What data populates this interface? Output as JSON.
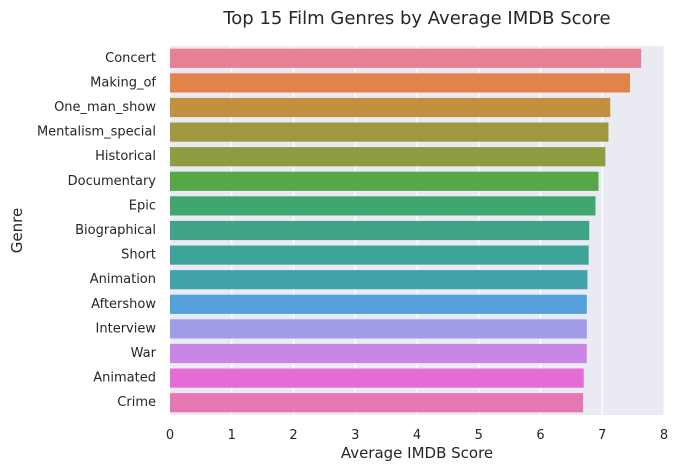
{
  "chart_data": {
    "type": "bar",
    "orientation": "horizontal",
    "title": "Top 15 Film Genres by Average IMDB Score",
    "xlabel": "Average IMDB Score",
    "ylabel": "Genre",
    "categories": [
      "Concert",
      "Making_of",
      "One_man_show",
      "Mentalism_special",
      "Historical",
      "Documentary",
      "Epic",
      "Biographical",
      "Short",
      "Animation",
      "Aftershow",
      "Interview",
      "War",
      "Animated",
      "Crime"
    ],
    "values": [
      7.63,
      7.45,
      7.13,
      7.1,
      7.05,
      6.94,
      6.89,
      6.79,
      6.78,
      6.76,
      6.75,
      6.75,
      6.75,
      6.7,
      6.69
    ],
    "colors": [
      "#e68093",
      "#e0844c",
      "#c0923e",
      "#9f9840",
      "#8d9c3e",
      "#55a845",
      "#3ea66e",
      "#3fa487",
      "#40a39a",
      "#42a2aa",
      "#54a1d9",
      "#a09ce7",
      "#ca86e7",
      "#e46cd6",
      "#e578b4"
    ],
    "xlim": [
      0,
      8
    ],
    "xticks": [
      0,
      1,
      2,
      3,
      4,
      5,
      6,
      7,
      8
    ],
    "grid": true,
    "background": "#eaeaf2",
    "grid_color": "#ffffff",
    "legend": "none"
  }
}
